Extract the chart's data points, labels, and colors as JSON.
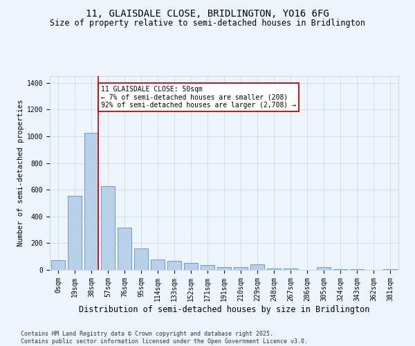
{
  "title": "11, GLAISDALE CLOSE, BRIDLINGTON, YO16 6FG",
  "subtitle": "Size of property relative to semi-detached houses in Bridlington",
  "xlabel": "Distribution of semi-detached houses by size in Bridlington",
  "ylabel": "Number of semi-detached properties",
  "footer": "Contains HM Land Registry data © Crown copyright and database right 2025.\nContains public sector information licensed under the Open Government Licence v3.0.",
  "bar_labels": [
    "0sqm",
    "19sqm",
    "38sqm",
    "57sqm",
    "76sqm",
    "95sqm",
    "114sqm",
    "133sqm",
    "152sqm",
    "171sqm",
    "191sqm",
    "210sqm",
    "229sqm",
    "248sqm",
    "267sqm",
    "286sqm",
    "305sqm",
    "324sqm",
    "343sqm",
    "362sqm",
    "381sqm"
  ],
  "bar_values": [
    75,
    555,
    1025,
    625,
    315,
    160,
    80,
    65,
    50,
    35,
    20,
    20,
    40,
    10,
    10,
    0,
    20,
    5,
    5,
    0,
    5
  ],
  "bar_color": "#b8d0e8",
  "bar_edge_color": "#5a8fc0",
  "red_line_bin": 2,
  "property_label": "11 GLAISDALE CLOSE: 50sqm",
  "pct_smaller": "7%",
  "n_smaller": "208",
  "pct_larger": "92%",
  "n_larger": "2,708",
  "annotation_box_color": "#ffffff",
  "annotation_border_color": "#cc0000",
  "ylim": [
    0,
    1450
  ],
  "yticks": [
    0,
    200,
    400,
    600,
    800,
    1000,
    1200,
    1400
  ],
  "grid_color": "#c8d8e8",
  "background_color": "#eef4fb",
  "red_line_color": "#cc0000",
  "title_fontsize": 10,
  "subtitle_fontsize": 8.5,
  "xlabel_fontsize": 8.5,
  "ylabel_fontsize": 7.5,
  "tick_fontsize": 7,
  "annot_fontsize": 7,
  "footer_fontsize": 6
}
